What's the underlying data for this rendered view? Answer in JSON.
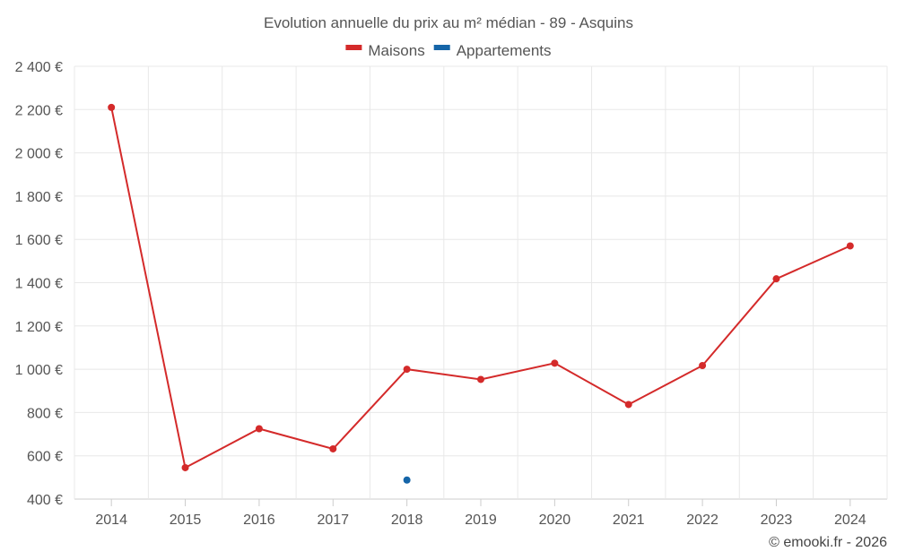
{
  "chart_data": {
    "type": "line",
    "title": "Evolution annuelle du prix au m² médian - 89 - Asquins",
    "categories": [
      "2014",
      "2015",
      "2016",
      "2017",
      "2018",
      "2019",
      "2020",
      "2021",
      "2022",
      "2023",
      "2024"
    ],
    "series": [
      {
        "name": "Maisons",
        "color": "#d42a2a",
        "values": [
          2210,
          545,
          725,
          632,
          1000,
          953,
          1028,
          837,
          1017,
          1418,
          1570
        ]
      },
      {
        "name": "Appartements",
        "color": "#1565a8",
        "values": [
          null,
          null,
          null,
          null,
          488,
          null,
          null,
          null,
          null,
          null,
          null
        ]
      }
    ],
    "ylim": [
      400,
      2400
    ],
    "yticks": [
      400,
      600,
      800,
      1000,
      1200,
      1400,
      1600,
      1800,
      2000,
      2200,
      2400
    ],
    "ytick_labels": [
      "400 €",
      "600 €",
      "800 €",
      "1 000 €",
      "1 200 €",
      "1 400 €",
      "1 600 €",
      "1 800 €",
      "2 000 €",
      "2 200 €",
      "2 400 €"
    ],
    "grid": true,
    "legend_position": "top-center"
  },
  "credit": "© emooki.fr - 2026"
}
